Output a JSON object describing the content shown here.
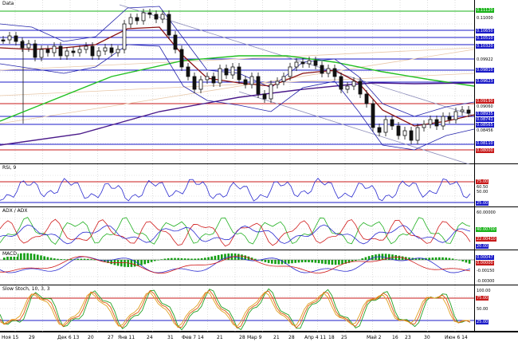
{
  "main": {
    "title": "Data",
    "price_labels": [
      {
        "text": "0.11120",
        "style": "hi-g"
      },
      {
        "text": "0.11000",
        "style": ""
      },
      {
        "text": "0.10650",
        "style": "hi"
      },
      {
        "text": "0.10510",
        "style": "hi"
      },
      {
        "text": "0.10320",
        "style": "hi"
      },
      {
        "text": "0.09922",
        "style": ""
      },
      {
        "text": "0.09810",
        "style": "hi"
      },
      {
        "text": "0.09623",
        "style": "hi"
      },
      {
        "text": "0.09190",
        "style": "hi-r"
      },
      {
        "text": "0.09060",
        "style": ""
      },
      {
        "text": "0.08935",
        "style": "hi"
      },
      {
        "text": "0.08741",
        "style": "hi"
      },
      {
        "text": "0.08565",
        "style": "hi"
      },
      {
        "text": "0.08456",
        "style": ""
      },
      {
        "text": "0.08110",
        "style": "hi"
      },
      {
        "text": "0.08000",
        "style": "hi-r"
      }
    ]
  },
  "rsi": {
    "title": "RSI, 9",
    "labels": [
      {
        "text": "75.00",
        "style": "hi-r"
      },
      {
        "text": "60.50",
        "style": ""
      },
      {
        "text": "50.00",
        "style": ""
      },
      {
        "text": "25.00",
        "style": "hi"
      }
    ]
  },
  "adx": {
    "title": "ADX / ADX",
    "labels": [
      {
        "text": "60.00000",
        "style": ""
      },
      {
        "text": "40.00700",
        "style": "hi-g"
      },
      {
        "text": "22.00410",
        "style": "hi-r"
      },
      {
        "text": "20.00",
        "style": "hi"
      }
    ]
  },
  "macd": {
    "title": "MACD",
    "labels": [
      {
        "text": "0.00047",
        "style": "hi"
      },
      {
        "text": "0.00000",
        "style": "hi-r"
      },
      {
        "text": "-0.00150",
        "style": ""
      },
      {
        "text": "-0.00300",
        "style": ""
      }
    ]
  },
  "stoch": {
    "title": "Slow Stoch, 10, 3, 3",
    "labels": [
      {
        "text": "100.00",
        "style": ""
      },
      {
        "text": "75.00",
        "style": "hi-r"
      },
      {
        "text": "50.00",
        "style": ""
      },
      {
        "text": "25.00",
        "style": "hi"
      }
    ]
  },
  "x_axis": {
    "ticks": [
      "Ноя 15",
      "29",
      "Дек 6 13",
      "20",
      "27",
      "Янв 11",
      "24",
      "31",
      "Фев 7 14",
      "21",
      "28",
      "Мар 9",
      "21",
      "28",
      "Апр 4 11",
      "18",
      "25",
      "Май 2",
      "16",
      "23",
      "30",
      "Июн 6 14"
    ]
  }
}
